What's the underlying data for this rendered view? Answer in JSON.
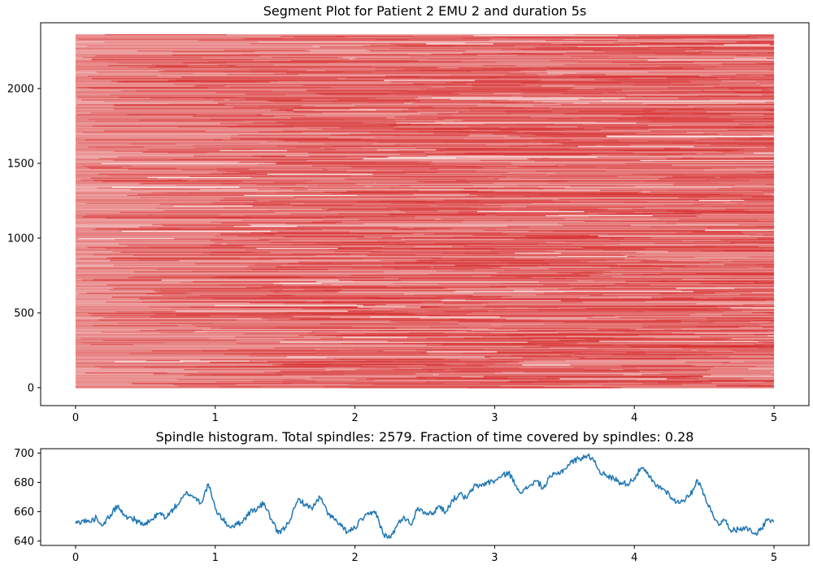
{
  "chart_data": [
    {
      "type": "segment",
      "title": "Segment Plot for Patient 2 EMU 2 and duration 5s",
      "xlabel": "",
      "ylabel": "",
      "xlim": [
        -0.25,
        5.25
      ],
      "ylim": [
        -120,
        2440
      ],
      "xticks": [
        0,
        1,
        2,
        3,
        4,
        5
      ],
      "xtick_labels": [
        "0",
        "1",
        "2",
        "3",
        "4",
        "5"
      ],
      "yticks": [
        0,
        500,
        1000,
        1500,
        2000
      ],
      "ytick_labels": [
        "0",
        "500",
        "1000",
        "1500",
        "2000"
      ],
      "segment_color": "#d62728",
      "segments": {
        "row_range": [
          0,
          2360
        ],
        "x_range": [
          0,
          5
        ],
        "rendered_as": "dense horizontal spindle segments, one row per spindle, semi-transparent red"
      },
      "grid": false
    },
    {
      "type": "line",
      "title": "Spindle histogram. Total spindles: 2579. Fraction of time covered by spindles: 0.28",
      "xlabel": "",
      "ylabel": "",
      "xlim": [
        -0.25,
        5.25
      ],
      "ylim": [
        637,
        703
      ],
      "xticks": [
        0,
        1,
        2,
        3,
        4,
        5
      ],
      "xtick_labels": [
        "0",
        "1",
        "2",
        "3",
        "4",
        "5"
      ],
      "yticks": [
        640,
        660,
        680,
        700
      ],
      "ytick_labels": [
        "640",
        "660",
        "680",
        "700"
      ],
      "line_color": "#1f77b4",
      "series": [
        {
          "x": [
            0,
            0.05,
            0.1,
            0.15,
            0.2,
            0.25,
            0.3,
            0.35,
            0.4,
            0.45,
            0.5,
            0.55,
            0.6,
            0.65,
            0.7,
            0.75,
            0.8,
            0.85,
            0.9,
            0.95,
            1.0,
            1.05,
            1.1,
            1.15,
            1.2,
            1.25,
            1.3,
            1.35,
            1.4,
            1.45,
            1.5,
            1.55,
            1.6,
            1.65,
            1.7,
            1.75,
            1.8,
            1.85,
            1.9,
            1.95,
            2.0,
            2.05,
            2.1,
            2.15,
            2.2,
            2.25,
            2.3,
            2.35,
            2.4,
            2.45,
            2.5,
            2.55,
            2.6,
            2.65,
            2.7,
            2.75,
            2.8,
            2.85,
            2.9,
            2.95,
            3.0,
            3.05,
            3.1,
            3.15,
            3.2,
            3.25,
            3.3,
            3.35,
            3.4,
            3.45,
            3.5,
            3.55,
            3.6,
            3.65,
            3.7,
            3.75,
            3.8,
            3.85,
            3.9,
            3.95,
            4.0,
            4.05,
            4.1,
            4.15,
            4.2,
            4.25,
            4.3,
            4.35,
            4.4,
            4.45,
            4.5,
            4.55,
            4.6,
            4.65,
            4.7,
            4.75,
            4.8,
            4.85,
            4.9,
            4.95,
            5.0
          ],
          "values": [
            652,
            654,
            653,
            656,
            651,
            658,
            664,
            657,
            656,
            653,
            651,
            655,
            659,
            656,
            662,
            667,
            673,
            670,
            666,
            679,
            662,
            655,
            650,
            651,
            654,
            660,
            662,
            666,
            655,
            645,
            649,
            658,
            669,
            664,
            663,
            670,
            660,
            655,
            650,
            646,
            649,
            655,
            658,
            660,
            645,
            642,
            650,
            657,
            651,
            663,
            660,
            658,
            664,
            660,
            668,
            672,
            669,
            677,
            678,
            680,
            681,
            684,
            687,
            678,
            673,
            678,
            681,
            676,
            684,
            686,
            689,
            694,
            696,
            698,
            697,
            688,
            684,
            683,
            680,
            679,
            683,
            690,
            685,
            678,
            676,
            672,
            666,
            668,
            671,
            682,
            672,
            660,
            652,
            654,
            647,
            648,
            650,
            645,
            647,
            654,
            653
          ]
        }
      ],
      "grid": false
    }
  ]
}
